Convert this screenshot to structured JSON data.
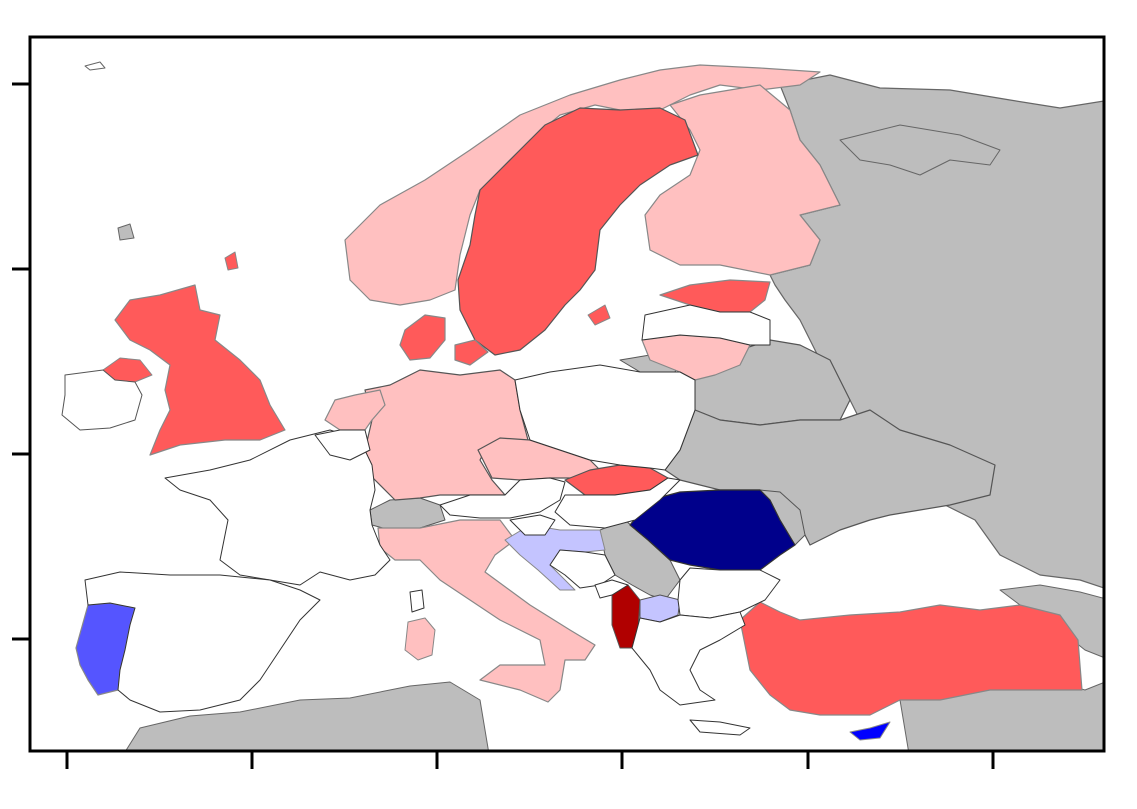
{
  "map": {
    "palette": {
      "sea": "#ffffff",
      "no_data": "#bdbdbd",
      "neutral": "#ffffff",
      "light_red": "#ffc0c0",
      "red": "#ff5a5a",
      "dark_red": "#b00000",
      "light_blue": "#c4c4ff",
      "blue": "#5555ff",
      "bright_blue": "#0000ff",
      "dark_blue": "#00008b"
    },
    "frame": {
      "x_ticks": 6,
      "y_ticks": 4
    },
    "countries": [
      {
        "id": "russia-west",
        "color": "no_data"
      },
      {
        "id": "russia-north",
        "color": "no_data"
      },
      {
        "id": "belarus",
        "color": "no_data"
      },
      {
        "id": "ukraine",
        "color": "no_data"
      },
      {
        "id": "moldova",
        "color": "no_data"
      },
      {
        "id": "switzerland",
        "color": "no_data"
      },
      {
        "id": "serbia",
        "color": "no_data"
      },
      {
        "id": "north-africa",
        "color": "no_data"
      },
      {
        "id": "middle-east",
        "color": "no_data"
      },
      {
        "id": "caucasus",
        "color": "no_data"
      },
      {
        "id": "kaliningrad",
        "color": "no_data"
      },
      {
        "id": "norway",
        "color": "light_red"
      },
      {
        "id": "finland",
        "color": "light_red"
      },
      {
        "id": "germany",
        "color": "light_red"
      },
      {
        "id": "italy",
        "color": "light_red"
      },
      {
        "id": "netherlands",
        "color": "light_red"
      },
      {
        "id": "lithuania",
        "color": "light_red"
      },
      {
        "id": "czechia",
        "color": "light_red"
      },
      {
        "id": "sardinia",
        "color": "light_red"
      },
      {
        "id": "sweden",
        "color": "red"
      },
      {
        "id": "united-kingdom",
        "color": "red"
      },
      {
        "id": "northern-ireland",
        "color": "red"
      },
      {
        "id": "denmark",
        "color": "red"
      },
      {
        "id": "estonia",
        "color": "red"
      },
      {
        "id": "slovakia",
        "color": "red"
      },
      {
        "id": "turkey",
        "color": "red"
      },
      {
        "id": "gotland",
        "color": "red"
      },
      {
        "id": "albania",
        "color": "dark_red"
      },
      {
        "id": "croatia",
        "color": "light_blue"
      },
      {
        "id": "north-macedonia",
        "color": "light_blue"
      },
      {
        "id": "portugal",
        "color": "blue"
      },
      {
        "id": "cyprus",
        "color": "bright_blue"
      },
      {
        "id": "romania",
        "color": "dark_blue"
      },
      {
        "id": "ireland",
        "color": "neutral"
      },
      {
        "id": "france",
        "color": "neutral"
      },
      {
        "id": "spain",
        "color": "neutral"
      },
      {
        "id": "poland",
        "color": "neutral"
      },
      {
        "id": "latvia",
        "color": "neutral"
      },
      {
        "id": "belgium",
        "color": "neutral"
      },
      {
        "id": "austria",
        "color": "neutral"
      },
      {
        "id": "hungary",
        "color": "neutral"
      },
      {
        "id": "slovenia",
        "color": "neutral"
      },
      {
        "id": "bosnia",
        "color": "neutral"
      },
      {
        "id": "montenegro",
        "color": "neutral"
      },
      {
        "id": "bulgaria",
        "color": "neutral"
      },
      {
        "id": "greece",
        "color": "neutral"
      },
      {
        "id": "corsica",
        "color": "neutral"
      }
    ]
  }
}
